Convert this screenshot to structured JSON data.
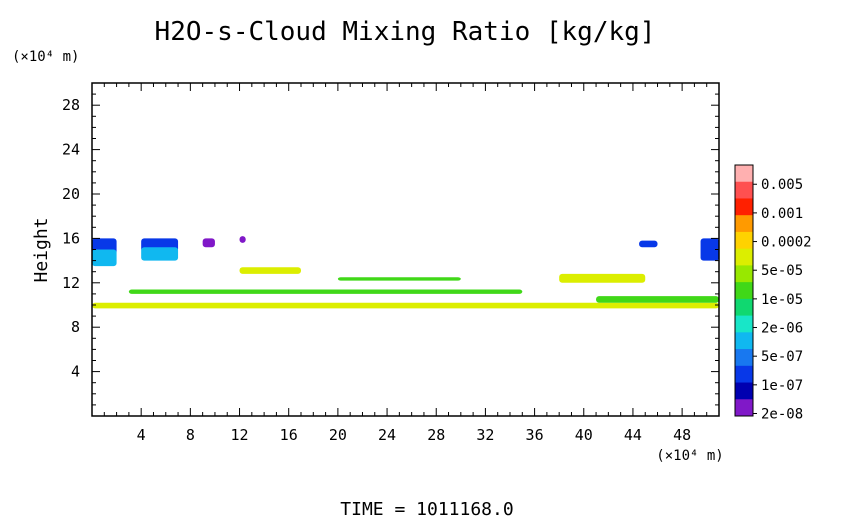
{
  "chart_data": {
    "type": "heatmap",
    "title": "H2O-s-Cloud Mixing Ratio [kg/kg]",
    "ylabel": "Height",
    "y_unit_label": "(×10⁴ m)",
    "x_unit_label": "(×10⁴ m)",
    "xlim": [
      0,
      51
    ],
    "ylim": [
      0,
      30
    ],
    "xticks": [
      4,
      8,
      12,
      16,
      20,
      24,
      28,
      32,
      36,
      40,
      44,
      48
    ],
    "yticks": [
      4,
      8,
      12,
      16,
      20,
      24,
      28
    ],
    "colorbar": {
      "labels": [
        "0.005",
        "0.001",
        "0.0002",
        "5e-05",
        "1e-05",
        "2e-06",
        "5e-07",
        "1e-07",
        "2e-08"
      ],
      "colors": [
        "#ffb0b0",
        "#ff5050",
        "#ff2000",
        "#ff9a00",
        "#ffd200",
        "#dcee00",
        "#98e800",
        "#40d818",
        "#10d870",
        "#18e6c8",
        "#10b8f0",
        "#1878f0",
        "#0838e8",
        "#0000b0",
        "#8018c8"
      ]
    },
    "patches": [
      {
        "level": "1e-07",
        "x": [
          0,
          2
        ],
        "y": [
          14.5,
          16
        ],
        "color": "#0838e8"
      },
      {
        "level": "5e-07",
        "x": [
          0,
          2
        ],
        "y": [
          13.5,
          15
        ],
        "color": "#10b8f0"
      },
      {
        "level": "1e-07",
        "x": [
          4,
          7
        ],
        "y": [
          14.8,
          16
        ],
        "color": "#0838e8"
      },
      {
        "level": "5e-07",
        "x": [
          4,
          7
        ],
        "y": [
          14,
          15.2
        ],
        "color": "#10b8f0"
      },
      {
        "level": "2e-08",
        "x": [
          9,
          10
        ],
        "y": [
          15.2,
          16
        ],
        "color": "#8018c8"
      },
      {
        "level": "2e-08",
        "x": [
          12,
          12.5
        ],
        "y": [
          15.6,
          16.2
        ],
        "color": "#8018c8"
      },
      {
        "level": "5e-05",
        "x": [
          12,
          17
        ],
        "y": [
          12.8,
          13.4
        ],
        "color": "#dcee00"
      },
      {
        "level": "1e-05",
        "x": [
          3,
          35
        ],
        "y": [
          11,
          11.4
        ],
        "color": "#40d818"
      },
      {
        "level": "5e-05",
        "x": [
          0,
          51
        ],
        "y": [
          9.7,
          10.2
        ],
        "color": "#dcee00"
      },
      {
        "level": "1e-05",
        "x": [
          20,
          30
        ],
        "y": [
          12.2,
          12.5
        ],
        "color": "#40d818"
      },
      {
        "level": "5e-05",
        "x": [
          38,
          45
        ],
        "y": [
          12,
          12.8
        ],
        "color": "#dcee00"
      },
      {
        "level": "1e-05",
        "x": [
          41,
          51
        ],
        "y": [
          10.2,
          10.8
        ],
        "color": "#40d818"
      },
      {
        "level": "1e-07",
        "x": [
          49.5,
          51
        ],
        "y": [
          14,
          16
        ],
        "color": "#0838e8"
      },
      {
        "level": "1e-07",
        "x": [
          44.5,
          46
        ],
        "y": [
          15.2,
          15.8
        ],
        "color": "#0838e8"
      }
    ]
  },
  "footer": {
    "time_label": "TIME = 1011168.0"
  }
}
